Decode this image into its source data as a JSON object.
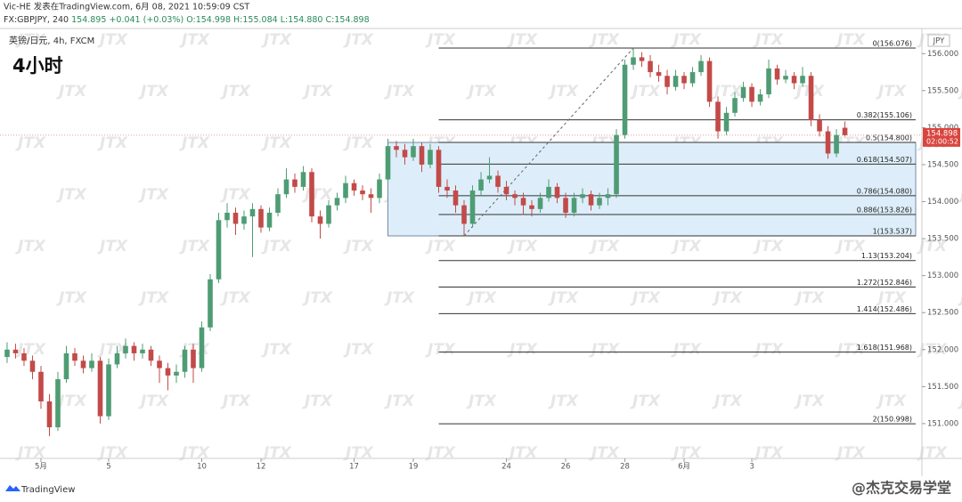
{
  "header": {
    "line1": "Vic-HE 发表在TradingView.com, 6月 08, 2021 10:59:09 CST",
    "symbol": "FX:GBPJPY, 240",
    "price": "154.895",
    "change": "+0.041 (+0.03%)",
    "o": "O:154.998",
    "h": "H:155.084",
    "l": "L:154.880",
    "c": "C:154.898"
  },
  "chart_data": {
    "type": "candlestick",
    "title": "4小时",
    "legend": "英镑/日元, 4h, FXCM",
    "currency": "JPY",
    "watermark": "JTX",
    "up_color": "#4e9c74",
    "down_color": "#c24a48",
    "open": [
      151.9,
      152.0,
      151.95,
      151.85,
      151.7,
      151.3,
      150.95,
      151.6,
      151.95,
      151.85,
      151.75,
      151.85,
      151.1,
      151.8,
      151.95,
      152.05,
      151.95,
      152.0,
      151.85,
      151.75,
      151.65,
      151.7,
      152.0,
      151.75,
      152.3,
      152.95,
      153.75,
      153.85,
      153.7,
      153.8,
      153.9,
      153.65,
      153.85,
      154.1,
      154.3,
      154.2,
      154.4,
      153.8,
      153.7,
      153.95,
      154.05,
      154.25,
      154.15,
      154.1,
      154.05,
      154.3,
      154.75,
      154.7,
      154.6,
      154.75,
      154.5,
      154.7,
      154.2,
      154.15,
      153.95,
      153.7,
      154.15,
      154.3,
      154.35,
      154.2,
      154.1,
      154.05,
      153.95,
      153.9,
      154.05,
      154.2,
      154.05,
      153.85,
      154.05,
      154.1,
      153.95,
      154.05,
      154.1,
      154.9,
      155.85,
      155.95,
      155.9,
      155.75,
      155.7,
      155.55,
      155.7,
      155.6,
      155.75,
      155.9,
      155.35,
      154.95,
      155.2,
      155.4,
      155.55,
      155.35,
      155.45,
      155.8,
      155.65,
      155.7,
      155.6,
      155.7,
      155.1,
      154.95,
      154.65,
      154.998
    ],
    "high": [
      152.1,
      152.08,
      152.02,
      151.92,
      151.78,
      151.4,
      151.7,
      152.05,
      152.02,
      151.92,
      151.95,
      151.9,
      151.88,
      152.05,
      152.15,
      152.1,
      152.08,
      152.05,
      151.92,
      151.82,
      151.8,
      152.05,
      152.08,
      152.38,
      153.02,
      153.85,
      153.98,
      153.92,
      153.88,
      153.98,
      153.95,
      153.92,
      154.18,
      154.45,
      154.38,
      154.48,
      154.45,
      153.88,
      154.02,
      154.12,
      154.35,
      154.3,
      154.22,
      154.18,
      154.38,
      154.85,
      154.82,
      154.78,
      154.85,
      154.8,
      154.78,
      154.75,
      154.3,
      154.22,
      154.02,
      154.22,
      154.4,
      154.6,
      154.42,
      154.28,
      154.15,
      154.12,
      154.02,
      154.12,
      154.3,
      154.25,
      154.12,
      154.12,
      154.18,
      154.15,
      154.12,
      154.18,
      154.98,
      155.92,
      156.076,
      156.02,
      155.98,
      155.85,
      155.78,
      155.78,
      155.75,
      155.82,
      155.98,
      155.95,
      155.42,
      155.28,
      155.48,
      155.62,
      155.6,
      155.52,
      155.92,
      155.85,
      155.78,
      155.75,
      155.82,
      155.75,
      155.18,
      155.02,
      154.98,
      155.084
    ],
    "low": [
      151.82,
      151.88,
      151.78,
      151.6,
      151.2,
      150.83,
      150.9,
      151.55,
      151.78,
      151.68,
      151.7,
      151.0,
      151.05,
      151.75,
      151.88,
      151.85,
      151.88,
      151.78,
      151.55,
      151.45,
      151.55,
      151.62,
      151.55,
      151.7,
      152.25,
      152.9,
      153.65,
      153.55,
      153.62,
      153.25,
      153.58,
      153.6,
      153.8,
      154.05,
      154.12,
      154.15,
      153.72,
      153.5,
      153.65,
      153.88,
      153.98,
      154.08,
      154.02,
      153.85,
      153.98,
      154.25,
      154.6,
      154.5,
      154.55,
      154.4,
      154.45,
      154.12,
      154.05,
      153.85,
      153.537,
      153.65,
      154.08,
      154.25,
      154.12,
      154.02,
      153.95,
      153.82,
      153.8,
      153.85,
      154.0,
      153.98,
      153.78,
      153.8,
      153.98,
      153.88,
      153.9,
      153.95,
      154.05,
      154.85,
      155.78,
      155.82,
      155.68,
      155.62,
      155.45,
      155.5,
      155.52,
      155.55,
      155.7,
      155.28,
      154.85,
      154.9,
      155.15,
      155.35,
      155.28,
      155.3,
      155.4,
      155.58,
      155.6,
      155.52,
      155.55,
      155.02,
      154.88,
      154.58,
      154.6,
      154.88
    ],
    "close": [
      152.0,
      151.95,
      151.85,
      151.7,
      151.3,
      150.95,
      151.6,
      151.95,
      151.85,
      151.75,
      151.85,
      151.1,
      151.8,
      151.95,
      152.05,
      151.95,
      152.0,
      151.85,
      151.75,
      151.65,
      151.7,
      152.0,
      151.75,
      152.3,
      152.95,
      153.75,
      153.85,
      153.7,
      153.8,
      153.9,
      153.65,
      153.85,
      154.1,
      154.3,
      154.2,
      154.4,
      153.8,
      153.7,
      153.95,
      154.05,
      154.25,
      154.15,
      154.1,
      154.05,
      154.3,
      154.75,
      154.7,
      154.6,
      154.75,
      154.5,
      154.7,
      154.2,
      154.15,
      153.95,
      153.7,
      154.15,
      154.3,
      154.35,
      154.2,
      154.1,
      154.05,
      153.95,
      153.9,
      154.05,
      154.2,
      154.05,
      153.85,
      154.05,
      154.1,
      153.95,
      154.05,
      154.1,
      154.9,
      155.85,
      155.95,
      155.9,
      155.75,
      155.7,
      155.55,
      155.7,
      155.6,
      155.75,
      155.9,
      155.35,
      154.95,
      155.2,
      155.4,
      155.55,
      155.35,
      155.45,
      155.8,
      155.65,
      155.7,
      155.6,
      155.7,
      155.1,
      154.95,
      154.65,
      154.9,
      154.898
    ],
    "xlim": [
      -0.84,
      108.1
    ],
    "xticks": [
      {
        "value": 4,
        "label": "5月"
      },
      {
        "value": 12,
        "label": "5"
      },
      {
        "value": 23,
        "label": "10"
      },
      {
        "value": 30,
        "label": "12"
      },
      {
        "value": 41,
        "label": "17"
      },
      {
        "value": 48,
        "label": "19"
      },
      {
        "value": 59,
        "label": "24"
      },
      {
        "value": 66,
        "label": "26"
      },
      {
        "value": 73,
        "label": "28"
      },
      {
        "value": 80,
        "label": "6月"
      },
      {
        "value": 88,
        "label": "3"
      }
    ],
    "ylim": [
      150.53,
      156.34
    ],
    "yticks": [
      {
        "value": 151,
        "label": "151.000"
      },
      {
        "value": 151.5,
        "label": "151.500"
      },
      {
        "value": 152,
        "label": "152.000"
      },
      {
        "value": 152.5,
        "label": "152.500"
      },
      {
        "value": 153,
        "label": "153.000"
      },
      {
        "value": 153.5,
        "label": "153.500"
      },
      {
        "value": 154,
        "label": "154.000"
      },
      {
        "value": 154.5,
        "label": "154.500"
      },
      {
        "value": 155,
        "label": "155.000"
      },
      {
        "value": 155.5,
        "label": "155.500"
      },
      {
        "value": 156,
        "label": "156.000"
      }
    ],
    "last_price": 154.898,
    "countdown": "02:00:52",
    "fib_levels": [
      {
        "value": 156.076,
        "label": "0(156.076)"
      },
      {
        "value": 155.106,
        "label": "0.382(155.106)"
      },
      {
        "value": 154.8,
        "label": "0.5(154.800)"
      },
      {
        "value": 154.507,
        "label": "0.618(154.507)"
      },
      {
        "value": 154.08,
        "label": "0.786(154.080)"
      },
      {
        "value": 153.826,
        "label": "0.886(153.826)"
      },
      {
        "value": 153.537,
        "label": "1(153.537)"
      },
      {
        "value": 153.204,
        "label": "1.13(153.204)"
      },
      {
        "value": 152.846,
        "label": "1.272(152.846)"
      },
      {
        "value": 152.486,
        "label": "1.414(152.486)"
      },
      {
        "value": 151.968,
        "label": "1.618(151.968)"
      },
      {
        "value": 150.998,
        "label": "2(150.998)"
      }
    ]
  },
  "footer": {
    "logo": "TradingView",
    "credit": "@杰克交易学堂"
  }
}
